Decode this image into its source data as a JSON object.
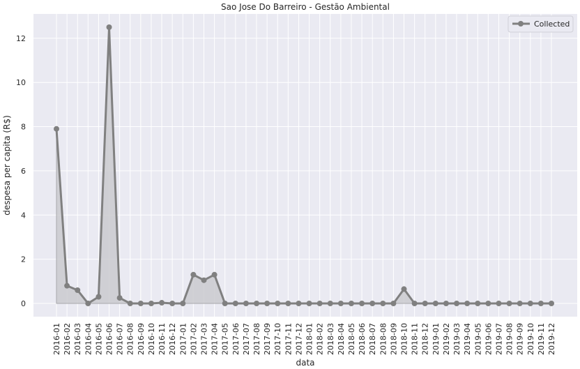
{
  "chart_data": {
    "type": "line",
    "title": "Sao Jose Do Barreiro - Gestão Ambiental",
    "xlabel": "data",
    "ylabel": "despesa per capita (R$)",
    "ylim": [
      -0.6,
      13.1
    ],
    "yticks": [
      0,
      2,
      4,
      6,
      8,
      10,
      12
    ],
    "grid": true,
    "legend_position": "top-right",
    "colors": {
      "series": "#808080",
      "area": "#c8c8cc",
      "background": "#eaeaf2",
      "grid": "#ffffff"
    },
    "categories": [
      "2016-01",
      "2016-02",
      "2016-03",
      "2016-04",
      "2016-05",
      "2016-06",
      "2016-07",
      "2016-08",
      "2016-09",
      "2016-10",
      "2016-11",
      "2016-12",
      "2017-01",
      "2017-02",
      "2017-03",
      "2017-04",
      "2017-05",
      "2017-06",
      "2017-07",
      "2017-08",
      "2017-09",
      "2017-10",
      "2017-11",
      "2017-12",
      "2018-01",
      "2018-02",
      "2018-03",
      "2018-04",
      "2018-05",
      "2018-06",
      "2018-07",
      "2018-08",
      "2018-09",
      "2018-10",
      "2018-11",
      "2018-12",
      "2019-01",
      "2019-02",
      "2019-03",
      "2019-04",
      "2019-05",
      "2019-06",
      "2019-07",
      "2019-08",
      "2019-09",
      "2019-10",
      "2019-11",
      "2019-12"
    ],
    "series": [
      {
        "name": "Collected",
        "values": [
          7.9,
          0.8,
          0.6,
          0.0,
          0.3,
          12.5,
          0.25,
          0.0,
          0.0,
          0.0,
          0.03,
          0.0,
          0.0,
          1.3,
          1.05,
          1.3,
          0.0,
          0.0,
          0.0,
          0.0,
          0.0,
          0.0,
          0.0,
          0.0,
          0.0,
          0.0,
          0.0,
          0.0,
          0.0,
          0.0,
          0.0,
          0.0,
          0.0,
          0.65,
          0.0,
          0.0,
          0.0,
          0.0,
          0.0,
          0.0,
          0.0,
          0.0,
          0.0,
          0.0,
          0.0,
          0.0,
          0.0,
          0.0
        ]
      }
    ]
  }
}
